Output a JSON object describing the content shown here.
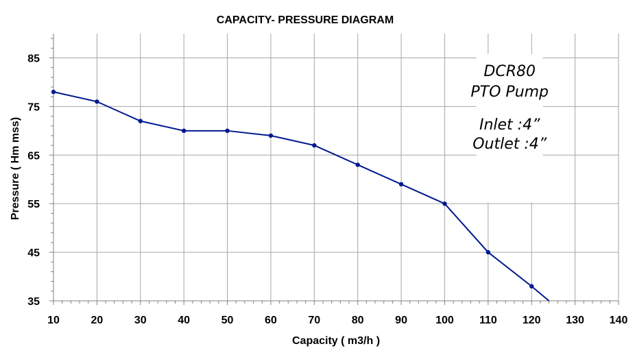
{
  "chart_data": {
    "type": "line",
    "title": "CAPACITY- PRESSURE DIAGRAM",
    "xlabel": "Capacity ( m3/h )",
    "ylabel": "Pressure ( Hm mss)",
    "xlim": [
      10,
      140
    ],
    "ylim": [
      35,
      90
    ],
    "xticks": [
      10,
      20,
      30,
      40,
      50,
      60,
      70,
      80,
      90,
      100,
      110,
      120,
      130,
      140
    ],
    "yticks": [
      35,
      45,
      55,
      65,
      75,
      85
    ],
    "grid": true,
    "series": [
      {
        "x": [
          10,
          20,
          30,
          40,
          50,
          60,
          70,
          80,
          90,
          100,
          110,
          120
        ],
        "y": [
          78,
          76,
          72,
          70,
          70,
          69,
          67,
          63,
          59,
          55,
          45,
          38
        ],
        "line_end": [
          124,
          35
        ]
      }
    ],
    "annotation": {
      "lines": [
        "DCR80",
        "PTO Pump",
        "Inlet :4”",
        "Outlet :4”"
      ]
    },
    "colors": {
      "series": "#00188f",
      "grid": "#a6a6a6",
      "axis": "#808080"
    }
  }
}
